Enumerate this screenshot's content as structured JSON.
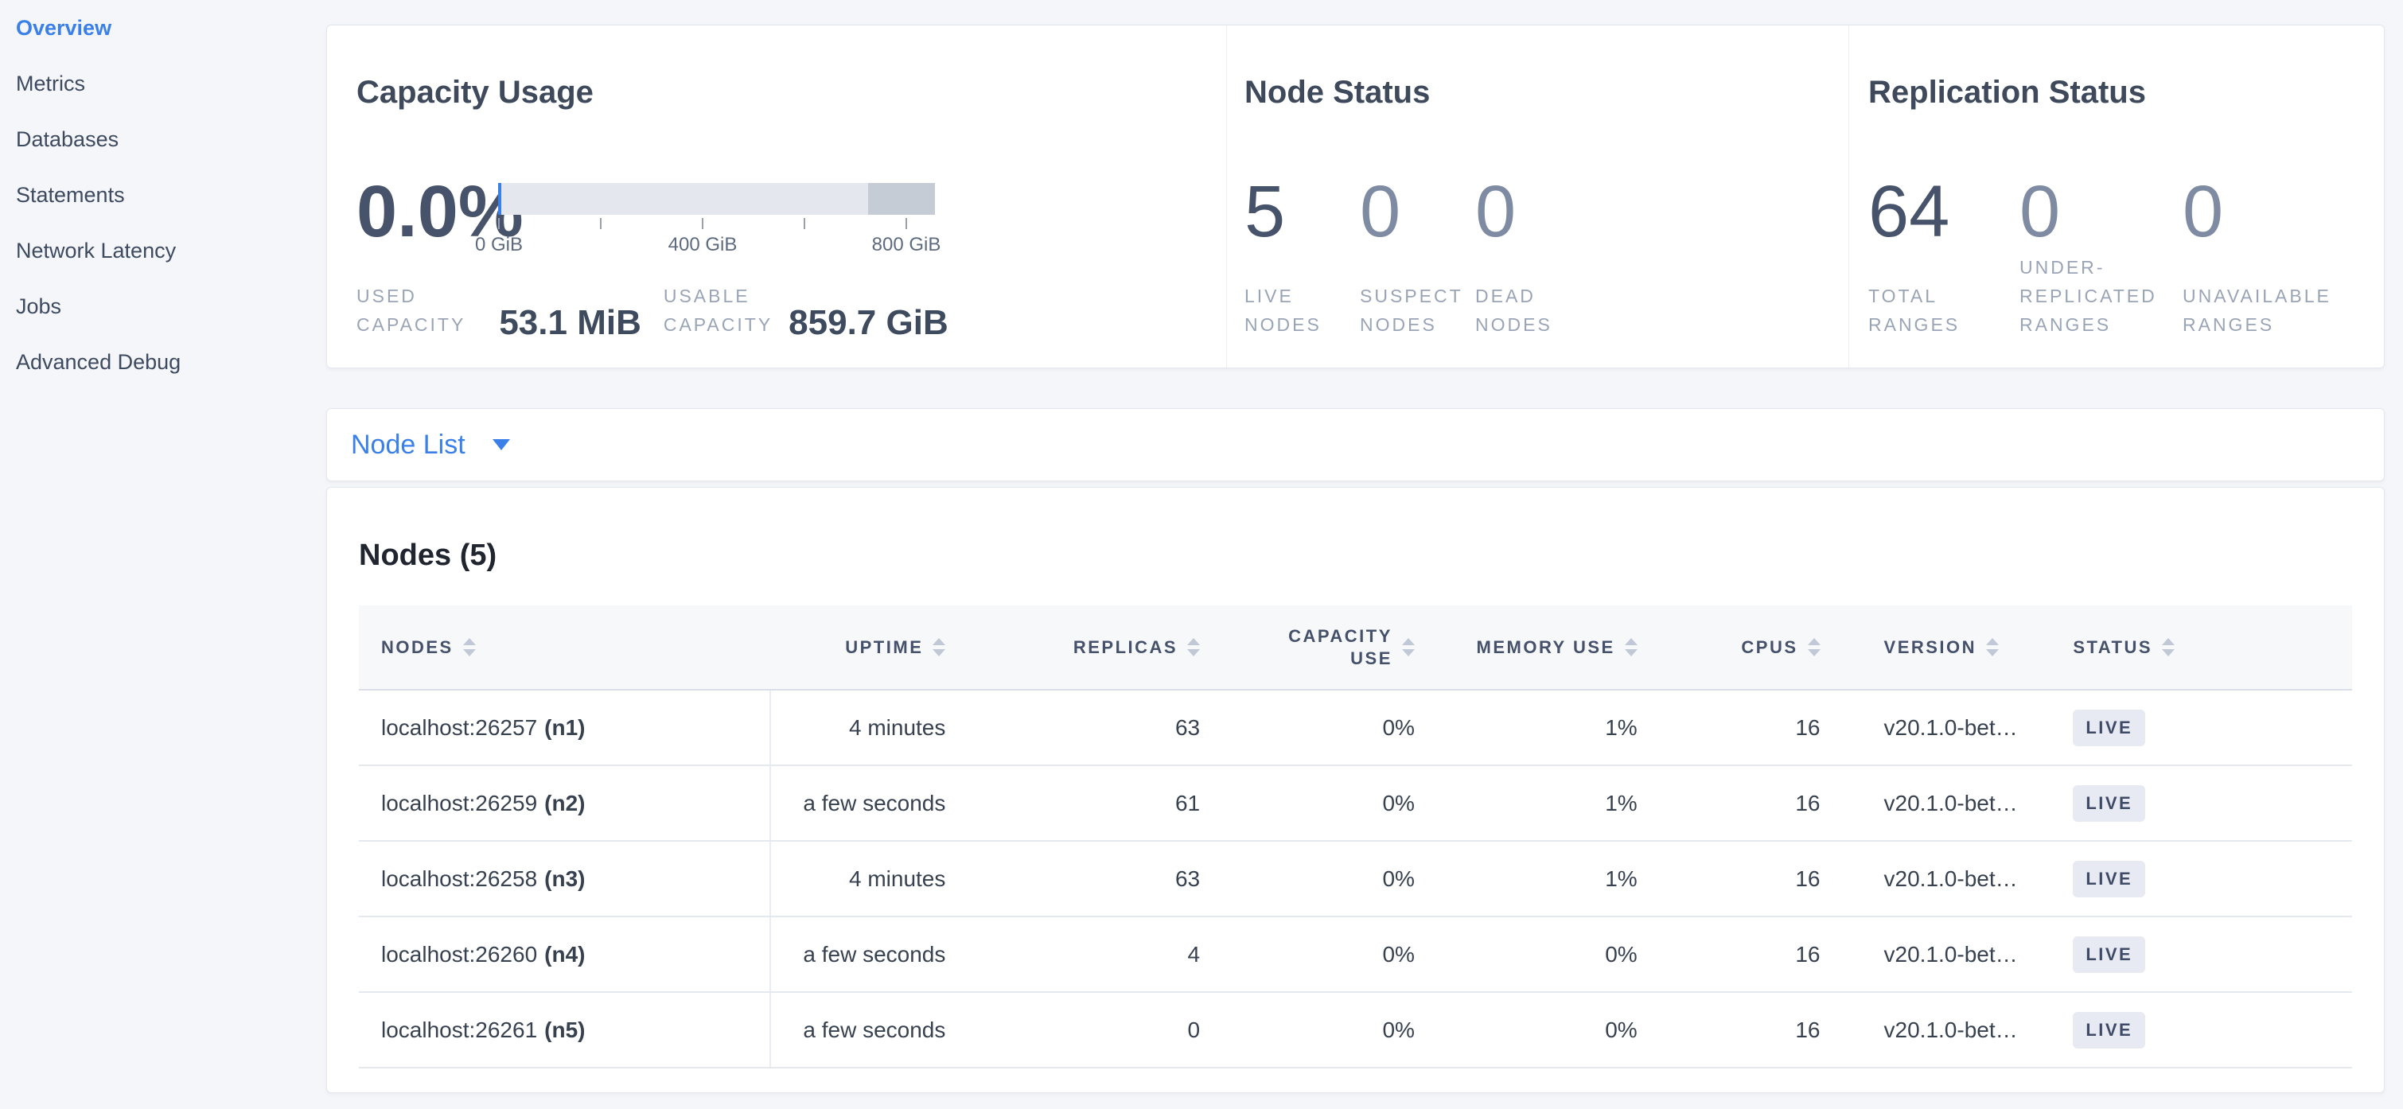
{
  "sidebar": {
    "items": [
      {
        "label": "Overview",
        "active": true
      },
      {
        "label": "Metrics",
        "active": false
      },
      {
        "label": "Databases",
        "active": false
      },
      {
        "label": "Statements",
        "active": false
      },
      {
        "label": "Network Latency",
        "active": false
      },
      {
        "label": "Jobs",
        "active": false
      },
      {
        "label": "Advanced Debug",
        "active": false
      }
    ]
  },
  "summary": {
    "capacity": {
      "title": "Capacity Usage",
      "percent": "0.0%",
      "ticks": {
        "t0": "0 GiB",
        "t400": "400 GiB",
        "t800": "800 GiB"
      },
      "bar": {
        "used_pct": "0.7%",
        "dark_pct": "15.3%"
      },
      "used_label": "USED\nCAPACITY",
      "used_value": "53.1 MiB",
      "usable_label": "USABLE\nCAPACITY",
      "usable_value": "859.7 GiB"
    },
    "node_status": {
      "title": "Node Status",
      "live": {
        "value": "5",
        "label": "LIVE\nNODES"
      },
      "suspect": {
        "value": "0",
        "label": "SUSPECT\nNODES"
      },
      "dead": {
        "value": "0",
        "label": "DEAD\nNODES"
      }
    },
    "replication": {
      "title": "Replication Status",
      "total": {
        "value": "64",
        "label": "TOTAL\nRANGES"
      },
      "under": {
        "value": "0",
        "label": "UNDER-\nREPLICATED\nRANGES"
      },
      "unavailable": {
        "value": "0",
        "label": "UNAVAILABLE\nRANGES"
      }
    }
  },
  "node_list": {
    "label": "Node List"
  },
  "nodes_table": {
    "title": "Nodes (5)",
    "columns": {
      "nodes": "NODES",
      "uptime": "UPTIME",
      "replicas": "REPLICAS",
      "capacity": "CAPACITY\nUSE",
      "memory": "MEMORY USE",
      "cpus": "CPUS",
      "version": "VERSION",
      "status": "STATUS"
    },
    "rows": [
      {
        "host": "localhost:26257",
        "id": "(n1)",
        "uptime": "4 minutes",
        "replicas": "63",
        "capacity_use": "0%",
        "memory_use": "1%",
        "cpus": "16",
        "version": "v20.1.0-bet…",
        "status": "LIVE"
      },
      {
        "host": "localhost:26259",
        "id": "(n2)",
        "uptime": "a few seconds",
        "replicas": "61",
        "capacity_use": "0%",
        "memory_use": "1%",
        "cpus": "16",
        "version": "v20.1.0-bet…",
        "status": "LIVE"
      },
      {
        "host": "localhost:26258",
        "id": "(n3)",
        "uptime": "4 minutes",
        "replicas": "63",
        "capacity_use": "0%",
        "memory_use": "1%",
        "cpus": "16",
        "version": "v20.1.0-bet…",
        "status": "LIVE"
      },
      {
        "host": "localhost:26260",
        "id": "(n4)",
        "uptime": "a few seconds",
        "replicas": "4",
        "capacity_use": "0%",
        "memory_use": "0%",
        "cpus": "16",
        "version": "v20.1.0-bet…",
        "status": "LIVE"
      },
      {
        "host": "localhost:26261",
        "id": "(n5)",
        "uptime": "a few seconds",
        "replicas": "0",
        "capacity_use": "0%",
        "memory_use": "0%",
        "cpus": "16",
        "version": "v20.1.0-bet…",
        "status": "LIVE"
      }
    ]
  },
  "colors": {
    "accent_blue": "#3a80e8",
    "badge_bg": "#e7eaf2",
    "bar_light": "#e4e7ed",
    "bar_dark": "#c6ccd6",
    "page_bg": "#f4f6fa"
  }
}
